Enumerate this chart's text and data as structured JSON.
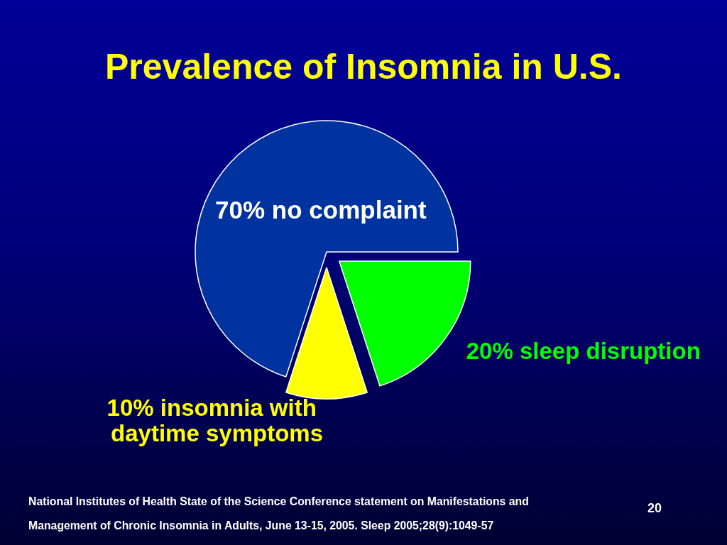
{
  "chart_data": {
    "type": "pie",
    "title": "Prevalence of Insomnia in U.S.",
    "categories": [
      "no complaint",
      "insomnia with daytime symptoms",
      "sleep disruption"
    ],
    "values": [
      70,
      10,
      20
    ],
    "colors": [
      "#0033a0",
      "#ffff00",
      "#00ff00"
    ],
    "value_labels": [
      "70%",
      "10%",
      "20%"
    ],
    "annotations": [
      "National Institutes of Health State of the Science Conference statement on Manifestations and Management of Chronic Insomnia in Adults, June 13-15, 2005. Sleep 2005;28(9):1049-57",
      "20"
    ]
  }
}
